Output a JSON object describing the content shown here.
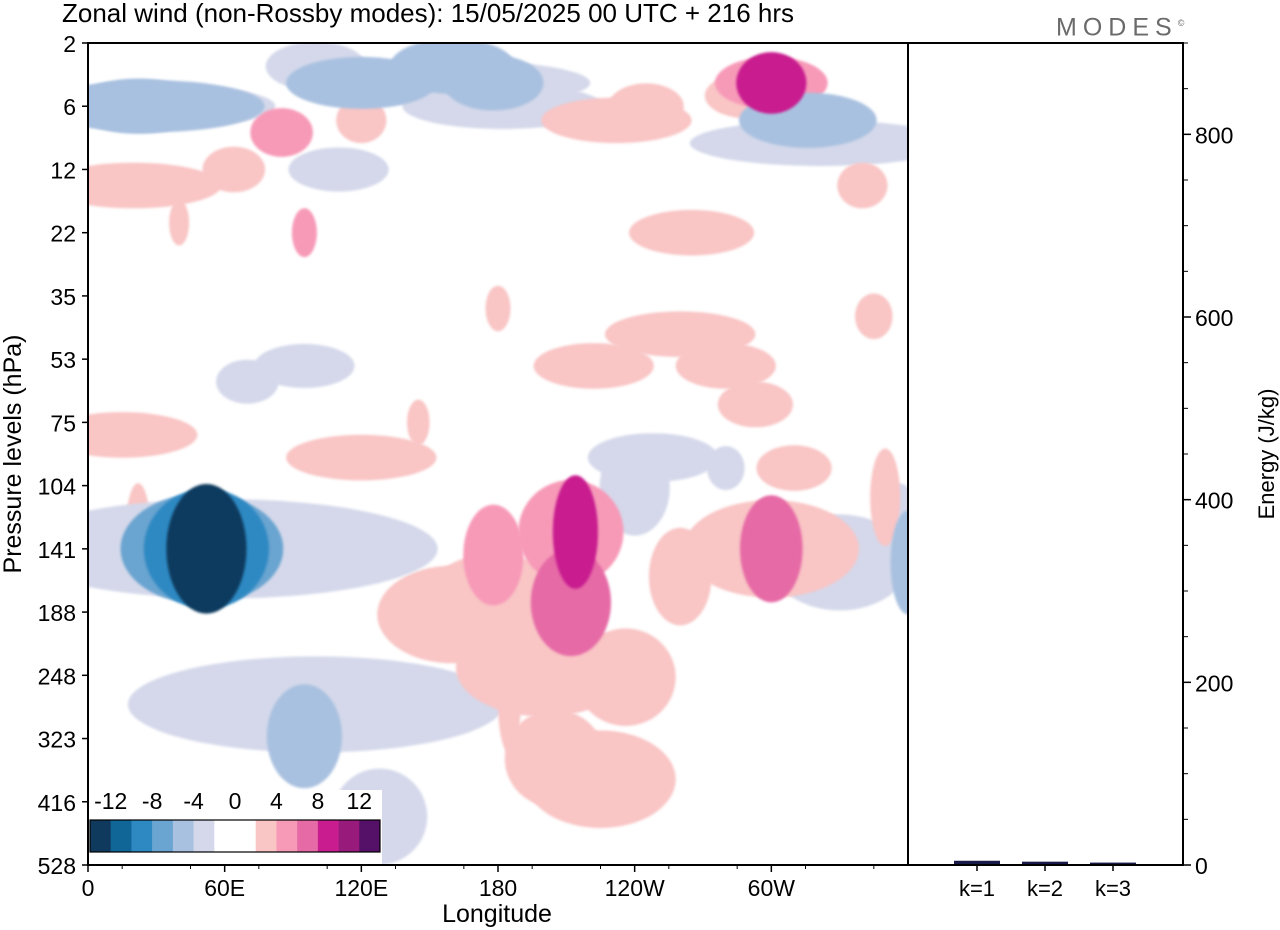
{
  "header": {
    "title": "Zonal wind (non-Rossby modes):  15/05/2025  00 UTC  + 216 hrs",
    "brand": "MODES",
    "brand_mark": "©"
  },
  "chart_data": [
    {
      "type": "heatmap",
      "variable": "Zonal wind (non-Rossby modes)",
      "xlabel": "Longitude",
      "ylabel": "Pressure levels (hPa)",
      "x_ticks": [
        {
          "lon": 0,
          "label": "0"
        },
        {
          "lon": 60,
          "label": "60E"
        },
        {
          "lon": 120,
          "label": "120E"
        },
        {
          "lon": 180,
          "label": "180"
        },
        {
          "lon": 240,
          "label": "120W"
        },
        {
          "lon": 300,
          "label": "60W"
        }
      ],
      "xlim": [
        0,
        360
      ],
      "pressure_levels": [
        2,
        6,
        12,
        22,
        35,
        53,
        75,
        104,
        141,
        188,
        248,
        323,
        416,
        528
      ],
      "y_axis_reversed": true,
      "colorbar": {
        "tick_labels": [
          "-12",
          "-8",
          "-4",
          "0",
          "4",
          "8",
          "12"
        ],
        "tick_values": [
          -12,
          -8,
          -4,
          0,
          4,
          8,
          12
        ],
        "colors": [
          "#0f3a5e",
          "#0f6697",
          "#2e89c2",
          "#6aa4d0",
          "#a9c1e0",
          "#d4d8ea",
          "#ffffff",
          "#ffffff",
          "#f9c5c5",
          "#f79ab8",
          "#e66aa6",
          "#c81c8f",
          "#981a7a",
          "#551067"
        ]
      },
      "features": [
        {
          "lon": 52,
          "level": 141,
          "value": -14
        },
        {
          "lon": 22,
          "level": 6,
          "value": -6
        },
        {
          "lon": 160,
          "level": 3,
          "value": -6
        },
        {
          "lon": 316,
          "level": 7,
          "value": -6
        },
        {
          "lon": 95,
          "level": 280,
          "value": -5
        },
        {
          "lon": 212,
          "level": 130,
          "value": 7
        },
        {
          "lon": 300,
          "level": 4,
          "value": 9
        },
        {
          "lon": 300,
          "level": 141,
          "value": 6
        },
        {
          "lon": 172,
          "level": 150,
          "value": 5
        }
      ]
    },
    {
      "type": "bar",
      "categories": [
        "k=1",
        "k=2",
        "k=3"
      ],
      "values": [
        3,
        2,
        1
      ],
      "ylabel": "Energy (J/kg)",
      "ylim": [
        0,
        900
      ],
      "y_ticks": [
        0,
        200,
        400,
        600,
        800
      ],
      "bar_color": "#1a1a4a"
    }
  ]
}
